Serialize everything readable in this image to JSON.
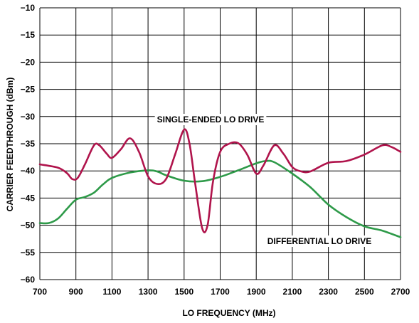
{
  "chart_data": {
    "type": "line",
    "xlabel": "LO FREQUENCY (MHz)",
    "ylabel": "CARRIER FEEDTHROUGH (dBm)",
    "xlim": [
      700,
      2700
    ],
    "ylim": [
      -60,
      -10
    ],
    "x_ticks": [
      "700",
      "900",
      "1100",
      "1300",
      "1500",
      "1700",
      "1900",
      "2100",
      "2300",
      "2500",
      "2700"
    ],
    "y_ticks": [
      "−10",
      "−15",
      "−20",
      "−25",
      "−30",
      "−35",
      "−40",
      "−45",
      "−50",
      "−55",
      "−60"
    ],
    "grid": true,
    "series": [
      {
        "name": "SINGLE-ENDED LO DRIVE",
        "color": "#b0144c",
        "points": [
          [
            700,
            -38.8
          ],
          [
            800,
            -39.4
          ],
          [
            850,
            -40.4
          ],
          [
            880,
            -41.5
          ],
          [
            910,
            -41.3
          ],
          [
            950,
            -38.8
          ],
          [
            1000,
            -35.3
          ],
          [
            1030,
            -35.3
          ],
          [
            1070,
            -36.8
          ],
          [
            1100,
            -37.6
          ],
          [
            1150,
            -36.0
          ],
          [
            1200,
            -34.0
          ],
          [
            1250,
            -36.5
          ],
          [
            1300,
            -41.0
          ],
          [
            1350,
            -42.4
          ],
          [
            1400,
            -41.5
          ],
          [
            1450,
            -37.0
          ],
          [
            1500,
            -32.4
          ],
          [
            1530,
            -35.0
          ],
          [
            1560,
            -42.0
          ],
          [
            1600,
            -50.5
          ],
          [
            1630,
            -50.0
          ],
          [
            1660,
            -42.0
          ],
          [
            1700,
            -36.5
          ],
          [
            1750,
            -35.0
          ],
          [
            1800,
            -34.9
          ],
          [
            1850,
            -37.0
          ],
          [
            1900,
            -40.5
          ],
          [
            1940,
            -39.0
          ],
          [
            2000,
            -35.3
          ],
          [
            2050,
            -36.8
          ],
          [
            2100,
            -39.3
          ],
          [
            2150,
            -40.1
          ],
          [
            2200,
            -40.1
          ],
          [
            2300,
            -38.5
          ],
          [
            2400,
            -38.2
          ],
          [
            2500,
            -37.0
          ],
          [
            2600,
            -35.3
          ],
          [
            2650,
            -35.6
          ],
          [
            2700,
            -36.5
          ]
        ]
      },
      {
        "name": "DIFFERENTIAL LO DRIVE",
        "color": "#2e9a49",
        "points": [
          [
            700,
            -49.6
          ],
          [
            750,
            -49.6
          ],
          [
            800,
            -48.8
          ],
          [
            850,
            -47.0
          ],
          [
            900,
            -45.3
          ],
          [
            950,
            -44.8
          ],
          [
            1000,
            -44.0
          ],
          [
            1050,
            -42.5
          ],
          [
            1100,
            -41.3
          ],
          [
            1200,
            -40.3
          ],
          [
            1300,
            -39.9
          ],
          [
            1350,
            -40.1
          ],
          [
            1400,
            -40.8
          ],
          [
            1500,
            -41.8
          ],
          [
            1600,
            -41.9
          ],
          [
            1700,
            -41.1
          ],
          [
            1800,
            -39.9
          ],
          [
            1900,
            -38.6
          ],
          [
            1950,
            -38.2
          ],
          [
            2000,
            -38.4
          ],
          [
            2100,
            -40.5
          ],
          [
            2200,
            -43.0
          ],
          [
            2300,
            -46.2
          ],
          [
            2400,
            -48.5
          ],
          [
            2500,
            -50.2
          ],
          [
            2600,
            -51.0
          ],
          [
            2700,
            -52.2
          ]
        ]
      }
    ],
    "annotations": [
      {
        "text": "SINGLE-ENDED LO DRIVE",
        "series": 0
      },
      {
        "text": "DIFFERENTIAL LO DRIVE",
        "series": 1
      }
    ]
  }
}
